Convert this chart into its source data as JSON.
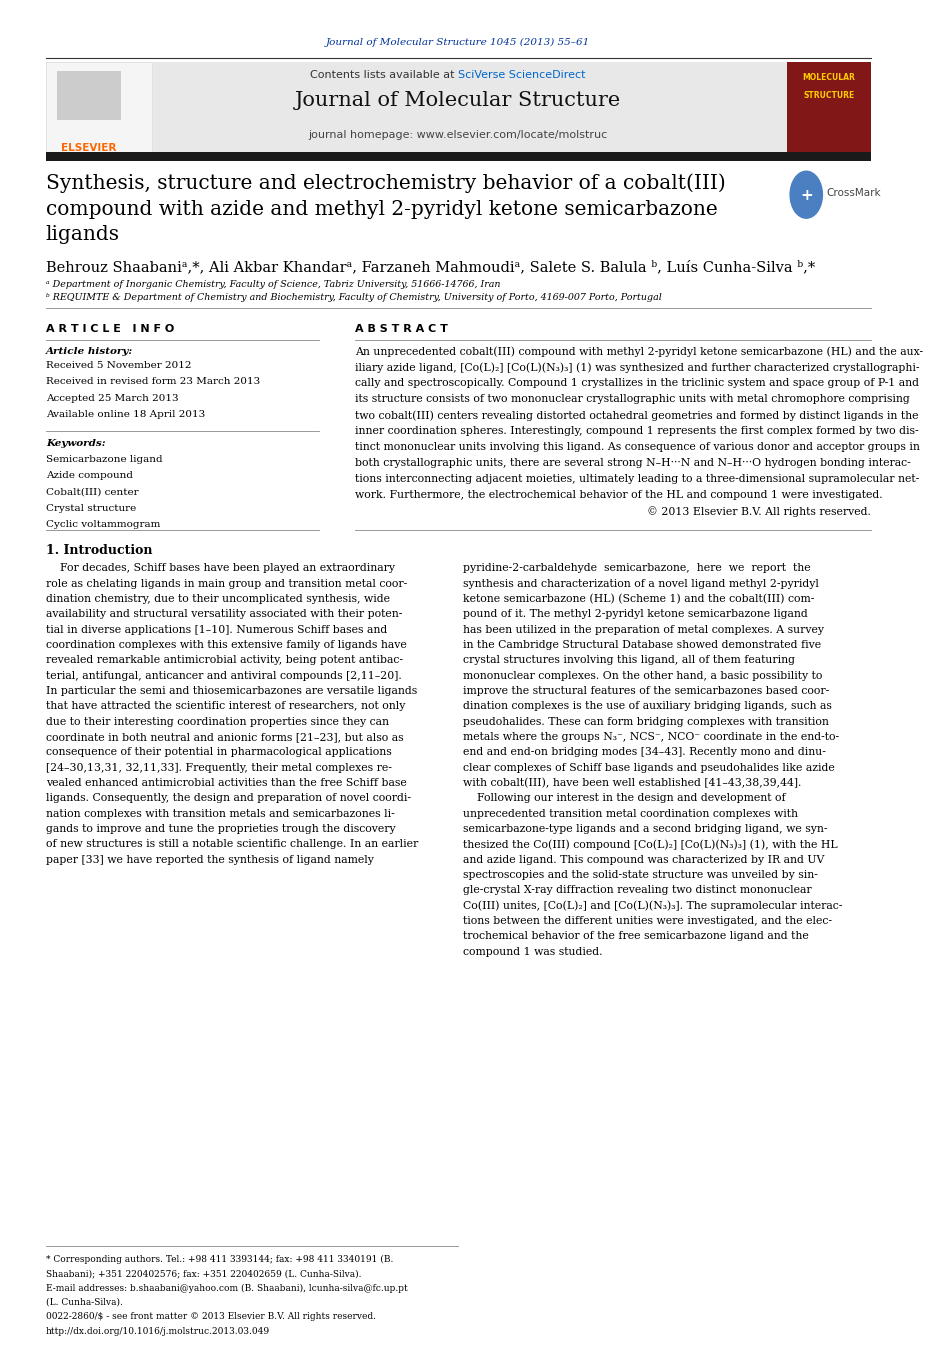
{
  "page_width": 9.92,
  "page_height": 13.23,
  "background_color": "#ffffff",
  "journal_ref": "Journal of Molecular Structure 1045 (2013) 55–61",
  "journal_ref_color": "#003399",
  "header_bg": "#e8e8e8",
  "header_contents_text": "Contents lists available at ",
  "header_sciverse": "SciVerse ScienceDirect",
  "header_sciverse_color": "#0066cc",
  "header_journal_name": "Journal of Molecular Structure",
  "header_homepage_text": "journal homepage: www.elsevier.com/locate/molstruc",
  "title": "Synthesis, structure and electrochemistry behavior of a cobalt(III)\ncompound with azide and methyl 2-pyridyl ketone semicarbazone\nligands",
  "authors": "Behrouz Shaabaniᵃ,*, Ali Akbar Khandarᵃ, Farzaneh Mahmoudiᵃ, Salete S. Balula ᵇ, Luís Cunha-Silva ᵇ,*",
  "affil1": "ᵃ Department of Inorganic Chemistry, Faculty of Science, Tabriz University, 51666-14766, Iran",
  "affil2": "ᵇ REQUIMTE & Department of Chemistry and Biochemistry, Faculty of Chemistry, University of Porto, 4169-007 Porto, Portugal",
  "article_info_header": "A R T I C L E   I N F O",
  "article_history_label": "Article history:",
  "received1": "Received 5 November 2012",
  "received2": "Received in revised form 23 March 2013",
  "accepted": "Accepted 25 March 2013",
  "available": "Available online 18 April 2013",
  "keywords_label": "Keywords:",
  "keywords": [
    "Semicarbazone ligand",
    "Azide compound",
    "Cobalt(III) center",
    "Crystal structure",
    "Cyclic voltammogram"
  ],
  "abstract_header": "A B S T R A C T",
  "abstract_lines": [
    "An unprecedented cobalt(III) compound with methyl 2-pyridyl ketone semicarbazone (HL) and the aux-",
    "iliary azide ligand, [Co(L)₂] [Co(L)(N₃)₃] (1) was synthesized and further characterized crystallographi-",
    "cally and spectroscopically. Compound 1 crystallizes in the triclinic system and space group of P-1 and",
    "its structure consists of two mononuclear crystallographic units with metal chromophore comprising",
    "two cobalt(III) centers revealing distorted octahedral geometries and formed by distinct ligands in the",
    "inner coordination spheres. Interestingly, compound 1 represents the first complex formed by two dis-",
    "tinct mononuclear units involving this ligand. As consequence of various donor and acceptor groups in",
    "both crystallographic units, there are several strong N–H···N and N–H···O hydrogen bonding interac-",
    "tions interconnecting adjacent moieties, ultimately leading to a three-dimensional supramolecular net-",
    "work. Furthermore, the electrochemical behavior of the HL and compound 1 were investigated.",
    "© 2013 Elsevier B.V. All rights reserved."
  ],
  "intro_header": "1. Introduction",
  "intro_col1_lines": [
    "    For decades, Schiff bases have been played an extraordinary",
    "role as chelating ligands in main group and transition metal coor-",
    "dination chemistry, due to their uncomplicated synthesis, wide",
    "availability and structural versatility associated with their poten-",
    "tial in diverse applications [1–10]. Numerous Schiff bases and",
    "coordination complexes with this extensive family of ligands have",
    "revealed remarkable antimicrobial activity, being potent antibac-",
    "terial, antifungal, anticancer and antiviral compounds [2,11–20].",
    "In particular the semi and thiosemicarbazones are versatile ligands",
    "that have attracted the scientific interest of researchers, not only",
    "due to their interesting coordination properties since they can",
    "coordinate in both neutral and anionic forms [21–23], but also as",
    "consequence of their potential in pharmacological applications",
    "[24–30,13,31, 32,11,33]. Frequently, their metal complexes re-",
    "vealed enhanced antimicrobial activities than the free Schiff base",
    "ligands. Consequently, the design and preparation of novel coordi-",
    "nation complexes with transition metals and semicarbazones li-",
    "gands to improve and tune the proprieties trough the discovery",
    "of new structures is still a notable scientific challenge. In an earlier",
    "paper [33] we have reported the synthesis of ligand namely"
  ],
  "intro_col2_lines": [
    "pyridine-2-carbaldehyde  semicarbazone,  here  we  report  the",
    "synthesis and characterization of a novel ligand methyl 2-pyridyl",
    "ketone semicarbazone (HL) (Scheme 1) and the cobalt(III) com-",
    "pound of it. The methyl 2-pyridyl ketone semicarbazone ligand",
    "has been utilized in the preparation of metal complexes. A survey",
    "in the Cambridge Structural Database showed demonstrated five",
    "crystal structures involving this ligand, all of them featuring",
    "mononuclear complexes. On the other hand, a basic possibility to",
    "improve the structural features of the semicarbazones based coor-",
    "dination complexes is the use of auxiliary bridging ligands, such as",
    "pseudohalides. These can form bridging complexes with transition",
    "metals where the groups N₃⁻, NCS⁻, NCO⁻ coordinate in the end-to-",
    "end and end-on bridging modes [34–43]. Recently mono and dinu-",
    "clear complexes of Schiff base ligands and pseudohalides like azide",
    "with cobalt(III), have been well established [41–43,38,39,44].",
    "    Following our interest in the design and development of",
    "unprecedented transition metal coordination complexes with",
    "semicarbazone-type ligands and a second bridging ligand, we syn-",
    "thesized the Co(III) compound [Co(L)₂] [Co(L)(N₃)₃] (1), with the HL",
    "and azide ligand. This compound was characterized by IR and UV",
    "spectroscopies and the solid-state structure was unveiled by sin-",
    "gle-crystal X-ray diffraction revealing two distinct mononuclear",
    "Co(III) unites, [Co(L)₂] and [Co(L)(N₃)₃]. The supramolecular interac-",
    "tions between the different unities were investigated, and the elec-",
    "trochemical behavior of the free semicarbazone ligand and the",
    "compound 1 was studied."
  ],
  "footnote1": "* Corresponding authors. Tel.: +98 411 3393144; fax: +98 411 3340191 (B. Shaabani); +351 220402576; fax: +351 220402659 (L. Cunha-Silva).",
  "footnote2": "   (L. Cunha-Silva).",
  "footnote3": "E-mail addresses: b.shaabani@yahoo.com (B. Shaabani), lcunha-silva@fc.up.pt",
  "footnote4": "0022-2860/$ - see front matter © 2013 Elsevier B.V. All rights reserved.",
  "footnote5": "http://dx.doi.org/10.1016/j.molstruc.2013.03.049",
  "thick_bar_color": "#1a1a1a",
  "link_color": "#0066cc"
}
